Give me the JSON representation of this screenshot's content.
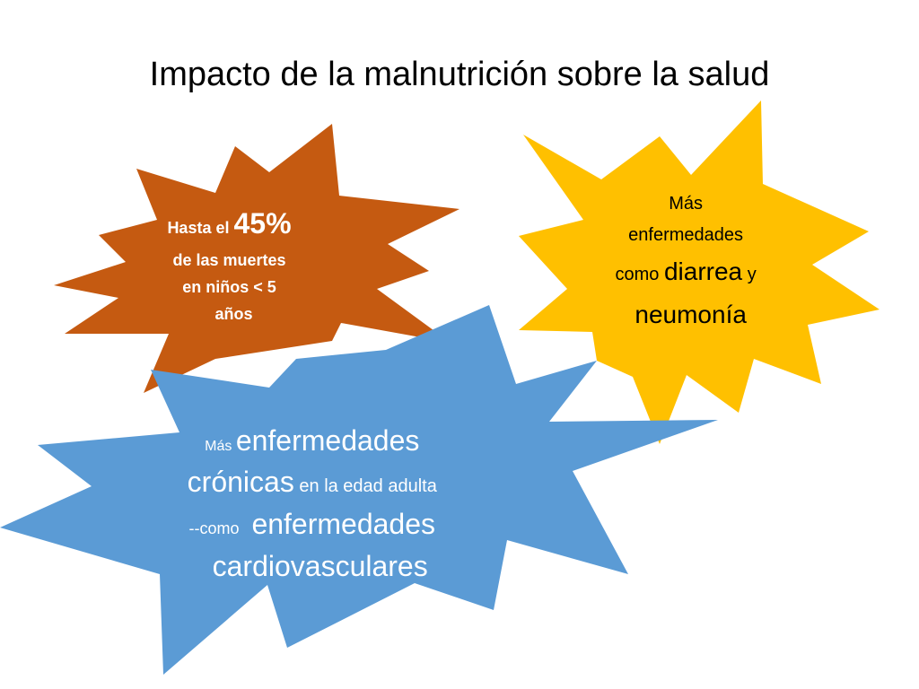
{
  "title": "Impacto de la malnutrición sobre la salud",
  "shapes": [
    {
      "lines": [
        [
          "Hasta el ",
          "45%"
        ],
        [
          "de las muertes"
        ],
        [
          "en niños < 5"
        ],
        [
          "años"
        ]
      ]
    },
    {
      "lines": [
        [
          "Más"
        ],
        [
          "enfermedades"
        ],
        [
          "como ",
          "diarrea",
          " y"
        ],
        [
          "neumonía"
        ]
      ]
    },
    {
      "lines": [
        [
          "Más ",
          "enfermedades"
        ],
        [
          "crónicas",
          " en la edad adulta"
        ],
        [
          "--como ",
          " enfermedades"
        ],
        [
          "cardiovasculares"
        ]
      ]
    }
  ]
}
